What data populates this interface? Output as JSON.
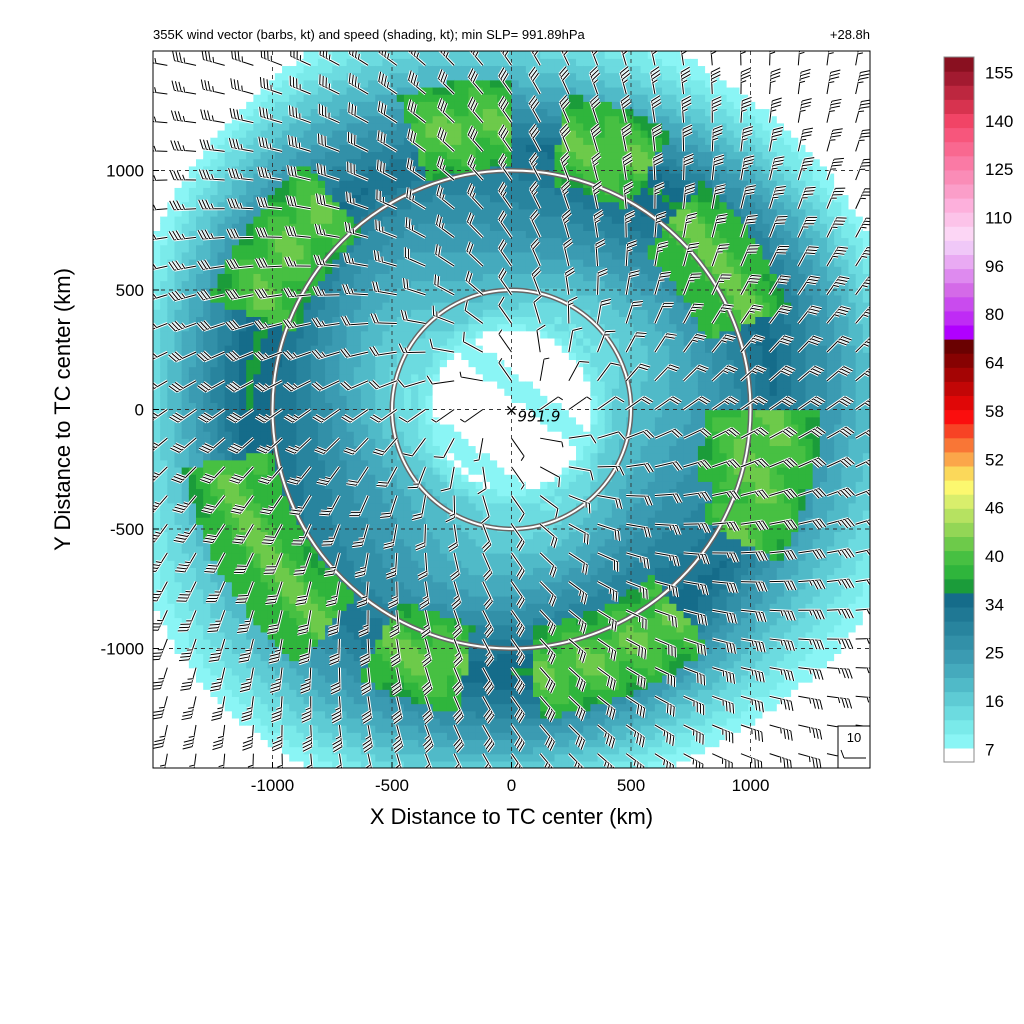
{
  "figure": {
    "title_left": "355K wind vector (barbs, kt) and speed (shading, kt); min SLP= 991.89hPa",
    "title_right": "+28.8h"
  },
  "chart_data": {
    "type": "heatmap",
    "title": "355K wind vector (barbs, kt) and speed (shading, kt); min SLP= 991.89hPa",
    "subtitle": "+28.8h",
    "xlabel": "X Distance to TC center (km)",
    "ylabel": "Y Distance to TC center (km)",
    "xlim": [
      -1500,
      1500
    ],
    "ylim": [
      -1500,
      1500
    ],
    "x_ticks": [
      -1000,
      -500,
      0,
      500,
      1000
    ],
    "y_ticks": [
      -1000,
      -500,
      0,
      500,
      1000
    ],
    "grid": true,
    "center": {
      "x": 0,
      "y": 0,
      "marker": "×",
      "label": "991.9",
      "min_slp_hpa": 991.89
    },
    "range_rings_km": [
      500,
      1000
    ],
    "reference_vector": {
      "label": "10",
      "speed_kt": 10,
      "placement": "bottom-right"
    },
    "speed_field": {
      "units": "kt",
      "center_calm_radius_km": 420,
      "peak_ring_radius_km": 1100,
      "green_band_sectors_deg": [
        {
          "from": 20,
          "to": 50,
          "radius_km": 1050
        },
        {
          "from": 60,
          "to": 80,
          "radius_km": 1150
        },
        {
          "from": 90,
          "to": 110,
          "radius_km": 1200
        },
        {
          "from": 130,
          "to": 160,
          "radius_km": 1150
        },
        {
          "from": 190,
          "to": 230,
          "radius_km": 1200
        },
        {
          "from": 240,
          "to": 260,
          "radius_km": 1100
        },
        {
          "from": 275,
          "to": 310,
          "radius_km": 1100
        },
        {
          "from": 330,
          "to": 360,
          "radius_km": 1100
        },
        {
          "from": -20,
          "to": 0,
          "radius_km": 1000
        }
      ]
    },
    "colorbar": {
      "labels": [
        "7",
        "16",
        "25",
        "34",
        "40",
        "46",
        "52",
        "58",
        "64",
        "80",
        "96",
        "110",
        "125",
        "140",
        "155"
      ],
      "colors": [
        "#ffffff",
        "#8af5f5",
        "#7aeaea",
        "#6cdbe0",
        "#5ecbd4",
        "#50bac8",
        "#45aabd",
        "#3b9bb2",
        "#3290a8",
        "#28849e",
        "#1f7894",
        "#156c8a",
        "#1b9c3a",
        "#2fb53c",
        "#47c042",
        "#6dca4a",
        "#93d656",
        "#b6e261",
        "#d9ee6c",
        "#fcf86f",
        "#fbd85a",
        "#fba64a",
        "#f97636",
        "#f74325",
        "#fb0e0e",
        "#e00707",
        "#c20606",
        "#a40404",
        "#870202",
        "#6a0101",
        "#b000ff",
        "#bf2bf5",
        "#c94bee",
        "#d46ae8",
        "#de8aef",
        "#e9aaf3",
        "#f0c8f8",
        "#fcd6f5",
        "#fcc3e9",
        "#fdb0dc",
        "#fb9ec9",
        "#fa8cb7",
        "#fa7aa5",
        "#f96890",
        "#f7567c",
        "#f14466",
        "#d7334f",
        "#bd273f",
        "#a21a30",
        "#891020"
      ]
    }
  }
}
